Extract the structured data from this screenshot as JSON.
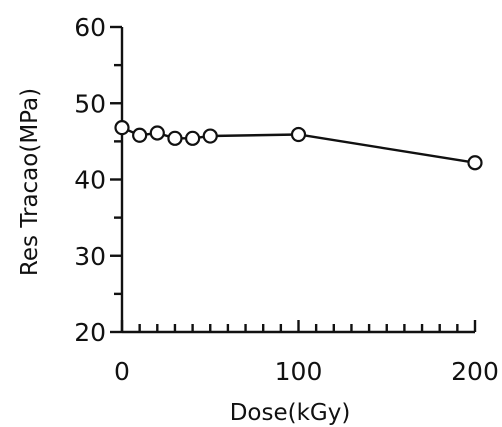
{
  "chart_data": {
    "type": "line",
    "xlabel": "Dose(kGy)",
    "ylabel": "Res Tracao(MPa)",
    "xlim": [
      0,
      200
    ],
    "ylim": [
      20,
      60
    ],
    "x_ticks": [
      "0",
      "100",
      "200"
    ],
    "y_ticks": [
      "20",
      "30",
      "40",
      "50",
      "60"
    ],
    "x_minor_step": 10,
    "y_minor_step": 5,
    "marker": "open-circle",
    "grid": false,
    "series": [
      {
        "x": [
          0,
          10,
          20,
          30,
          40,
          50,
          100,
          200
        ],
        "y": [
          46.8,
          45.8,
          46.1,
          45.4,
          45.4,
          45.7,
          45.9,
          42.2
        ]
      }
    ]
  }
}
